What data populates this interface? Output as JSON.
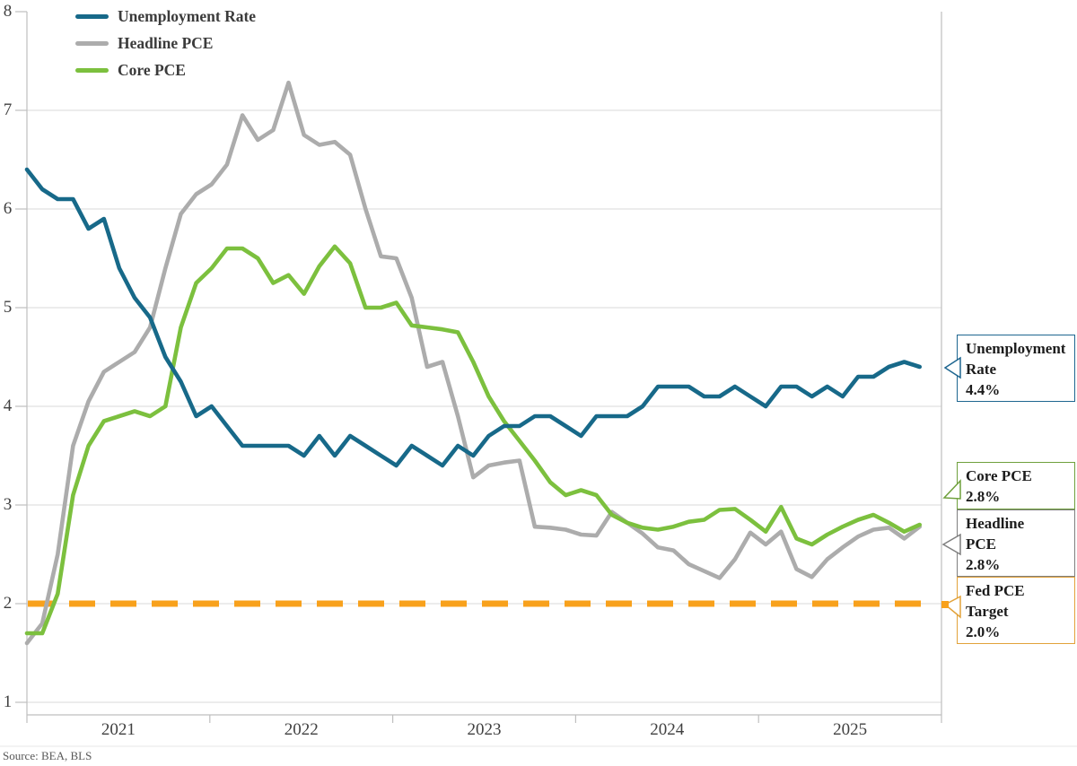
{
  "chart_data": {
    "type": "line",
    "title": "",
    "frequency": "monthly",
    "x_start": "2021-01",
    "x_end": "2025-11",
    "x_tick_labels": [
      "2021",
      "2022",
      "2023",
      "2024",
      "2025"
    ],
    "y_ticks": [
      8,
      7,
      6,
      5,
      4,
      3,
      2,
      1
    ],
    "ylim": [
      1,
      8
    ],
    "grid": "horizontal",
    "legend_position": "top-left",
    "series": [
      {
        "name": "Unemployment Rate",
        "color": "#176989",
        "values": [
          6.4,
          6.2,
          6.1,
          6.1,
          5.8,
          5.9,
          5.4,
          5.1,
          4.9,
          4.5,
          4.25,
          3.9,
          4.0,
          3.8,
          3.6,
          3.6,
          3.6,
          3.6,
          3.5,
          3.7,
          3.5,
          3.7,
          3.6,
          3.5,
          3.4,
          3.6,
          3.5,
          3.4,
          3.6,
          3.5,
          3.7,
          3.8,
          3.8,
          3.9,
          3.9,
          3.8,
          3.7,
          3.9,
          3.9,
          3.9,
          4.0,
          4.2,
          4.2,
          4.2,
          4.1,
          4.1,
          4.2,
          4.1,
          4.0,
          4.2,
          4.2,
          4.1,
          4.2,
          4.1,
          4.3,
          4.3,
          4.4,
          4.45,
          4.4
        ]
      },
      {
        "name": "Headline PCE",
        "color": "#ACACAC",
        "values": [
          1.6,
          1.8,
          2.5,
          3.6,
          4.05,
          4.35,
          4.45,
          4.55,
          4.8,
          5.4,
          5.95,
          6.15,
          6.25,
          6.45,
          6.95,
          6.7,
          6.8,
          7.28,
          6.75,
          6.65,
          6.68,
          6.55,
          6.0,
          5.52,
          5.5,
          5.1,
          4.4,
          4.45,
          3.9,
          3.28,
          3.4,
          3.43,
          3.45,
          2.78,
          2.77,
          2.75,
          2.7,
          2.69,
          2.93,
          2.82,
          2.71,
          2.57,
          2.54,
          2.4,
          2.33,
          2.26,
          2.45,
          2.72,
          2.6,
          2.73,
          2.35,
          2.27,
          2.45,
          2.57,
          2.68,
          2.75,
          2.77,
          2.66,
          2.78
        ]
      },
      {
        "name": "Core PCE",
        "color": "#7CC03E",
        "values": [
          1.7,
          1.7,
          2.1,
          3.1,
          3.6,
          3.85,
          3.9,
          3.95,
          3.9,
          4.0,
          4.8,
          5.25,
          5.4,
          5.6,
          5.6,
          5.5,
          5.25,
          5.33,
          5.14,
          5.42,
          5.62,
          5.45,
          5.0,
          5.0,
          5.05,
          4.82,
          4.8,
          4.78,
          4.75,
          4.45,
          4.1,
          3.85,
          3.65,
          3.45,
          3.23,
          3.1,
          3.15,
          3.1,
          2.9,
          2.82,
          2.77,
          2.75,
          2.78,
          2.83,
          2.85,
          2.95,
          2.96,
          2.85,
          2.73,
          2.98,
          2.66,
          2.6,
          2.7,
          2.78,
          2.85,
          2.9,
          2.82,
          2.73,
          2.8
        ]
      }
    ],
    "reference_line": {
      "name": "Fed PCE Target",
      "value": 2.0,
      "color": "#F8A11C",
      "style": "dashed"
    }
  },
  "callouts": [
    {
      "line1": "Unemployment",
      "line2": "Rate",
      "value": "4.4%",
      "color": "#1E6690"
    },
    {
      "line1": "Core PCE",
      "line2": "",
      "value": "2.8%",
      "color": "#6FA03C"
    },
    {
      "line1": "Headline",
      "line2": "PCE",
      "value": "2.8%",
      "color": "#7F7F7F"
    },
    {
      "line1": "Fed PCE",
      "line2": "Target",
      "value": "2.0%",
      "color": "#E2A23A"
    }
  ],
  "source_text": "Source: BEA, BLS",
  "colors": {
    "grid": "#D9D9D9",
    "axis": "#BFBFBF",
    "tick": "#BFBFBF",
    "footer_rule": "#E7E7E7"
  }
}
